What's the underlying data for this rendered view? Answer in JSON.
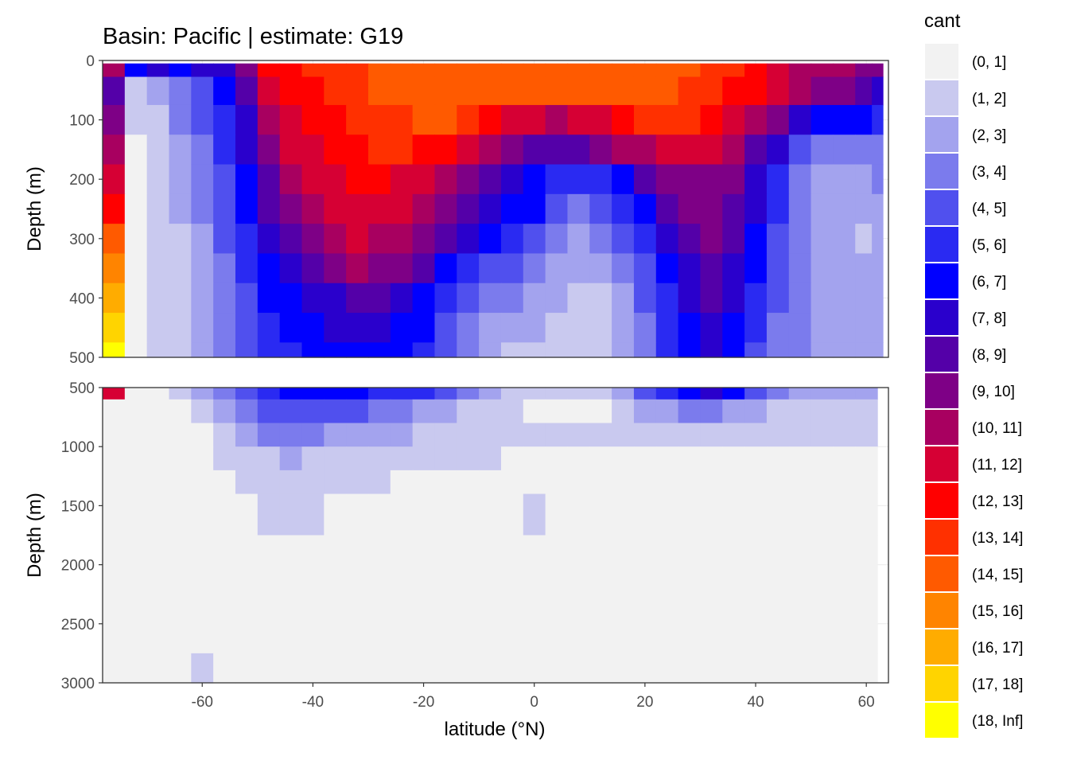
{
  "chart_data": {
    "type": "heatmap",
    "title": "Basin: Pacific | estimate: G19",
    "xlabel": "latitude (°N)",
    "x_ticks": [
      -60,
      -40,
      -20,
      0,
      20,
      40,
      60
    ],
    "xlim": [
      -78,
      64
    ],
    "panels": [
      {
        "ylabel": "Depth (m)",
        "ylim": [
          0,
          500
        ],
        "y_ticks": [
          0,
          100,
          200,
          300,
          400,
          500
        ],
        "reversed": true
      },
      {
        "ylabel": "Depth (m)",
        "ylim": [
          500,
          3000
        ],
        "y_ticks": [
          500,
          1000,
          1500,
          2000,
          2500,
          3000
        ],
        "reversed": true
      }
    ],
    "legend": {
      "title": "cant",
      "position": "right",
      "bins": [
        {
          "label": "(0, 1]",
          "color": "#f2f2f2"
        },
        {
          "label": "(1, 2]",
          "color": "#c9c9ef"
        },
        {
          "label": "(2, 3]",
          "color": "#a3a3ee"
        },
        {
          "label": "(3, 4]",
          "color": "#7b7bed"
        },
        {
          "label": "(4, 5]",
          "color": "#5050ee"
        },
        {
          "label": "(5, 6]",
          "color": "#2a2af2"
        },
        {
          "label": "(6, 7]",
          "color": "#0000ff"
        },
        {
          "label": "(7, 8]",
          "color": "#2a00cc"
        },
        {
          "label": "(8, 9]",
          "color": "#5400a8"
        },
        {
          "label": "(9, 10]",
          "color": "#7e0086"
        },
        {
          "label": "(10, 11]",
          "color": "#a80060"
        },
        {
          "label": "(11, 12]",
          "color": "#d60034"
        },
        {
          "label": "(12, 13]",
          "color": "#ff0000"
        },
        {
          "label": "(13, 14]",
          "color": "#ff3000"
        },
        {
          "label": "(14, 15]",
          "color": "#ff5a00"
        },
        {
          "label": "(15, 16]",
          "color": "#ff8400"
        },
        {
          "label": "(16, 17]",
          "color": "#ffac00"
        },
        {
          "label": "(17, 18]",
          "color": "#ffd400"
        },
        {
          "label": "(18, Inf]",
          "color": "#ffff00"
        }
      ]
    },
    "upper_field": {
      "lat": [
        -76,
        -72,
        -68,
        -64,
        -60,
        -56,
        -52,
        -48,
        -44,
        -40,
        -36,
        -32,
        -28,
        -24,
        -20,
        -16,
        -12,
        -8,
        -4,
        0,
        4,
        8,
        12,
        16,
        20,
        24,
        28,
        32,
        36,
        40,
        44,
        48,
        52,
        56,
        60,
        62
      ],
      "depth": [
        5,
        50,
        100,
        150,
        200,
        250,
        300,
        350,
        400,
        450,
        500
      ],
      "cant": [
        [
          11.0,
          7.0,
          7.5,
          7.0,
          8.0,
          8.0,
          10.0,
          12.5,
          13.0,
          13.5,
          14.0,
          14.0,
          14.5,
          14.5,
          15.0,
          15.0,
          15.0,
          15.0,
          15.0,
          15.0,
          15.0,
          15.0,
          15.0,
          15.0,
          15.0,
          15.0,
          14.5,
          14.0,
          13.5,
          12.5,
          11.5,
          11.0,
          11.0,
          10.5,
          10.0,
          9.5
        ],
        [
          9.0,
          2.0,
          3.0,
          4.0,
          5.0,
          7.0,
          9.0,
          12.0,
          12.5,
          13.0,
          13.5,
          14.0,
          14.5,
          14.5,
          15.0,
          15.0,
          15.0,
          15.0,
          15.0,
          15.0,
          15.0,
          15.0,
          15.0,
          15.0,
          15.0,
          14.5,
          14.0,
          13.5,
          13.0,
          12.5,
          11.5,
          10.5,
          10.0,
          9.5,
          9.0,
          8.0
        ],
        [
          10.0,
          1.5,
          2.0,
          3.5,
          4.5,
          6.0,
          8.0,
          11.0,
          12.0,
          12.5,
          13.0,
          13.5,
          14.0,
          14.0,
          14.5,
          14.5,
          14.0,
          13.0,
          12.0,
          11.5,
          11.0,
          11.5,
          12.0,
          12.5,
          13.5,
          14.0,
          13.5,
          13.0,
          12.0,
          11.0,
          9.5,
          8.0,
          7.0,
          6.5,
          6.5,
          6.0
        ],
        [
          11.0,
          1.0,
          1.5,
          3.0,
          4.0,
          5.5,
          7.5,
          10.0,
          11.5,
          12.0,
          12.5,
          13.0,
          13.5,
          13.5,
          13.0,
          12.5,
          11.5,
          10.5,
          9.5,
          9.0,
          8.5,
          9.0,
          9.5,
          10.5,
          11.0,
          11.5,
          12.0,
          11.5,
          10.5,
          9.0,
          7.5,
          5.0,
          4.0,
          3.5,
          4.0,
          4.0
        ],
        [
          12.0,
          1.0,
          1.5,
          2.5,
          3.5,
          5.0,
          7.0,
          9.0,
          10.5,
          11.5,
          12.0,
          12.5,
          12.5,
          12.0,
          11.5,
          10.5,
          9.5,
          8.5,
          7.5,
          7.0,
          6.0,
          5.5,
          6.0,
          7.0,
          8.5,
          9.5,
          10.0,
          10.0,
          9.5,
          8.0,
          6.0,
          4.0,
          3.0,
          2.5,
          3.0,
          3.5
        ],
        [
          13.0,
          1.0,
          1.5,
          2.5,
          3.5,
          4.5,
          6.5,
          8.5,
          10.0,
          11.0,
          11.5,
          12.0,
          12.0,
          11.5,
          10.5,
          9.5,
          8.5,
          7.5,
          7.0,
          6.5,
          5.0,
          4.0,
          4.5,
          5.5,
          7.0,
          8.5,
          9.5,
          9.5,
          9.0,
          7.5,
          5.5,
          3.8,
          3.0,
          2.5,
          2.5,
          3.0
        ],
        [
          14.5,
          1.0,
          1.5,
          2.0,
          3.0,
          4.5,
          6.0,
          7.5,
          9.0,
          10.0,
          11.0,
          11.5,
          11.0,
          10.5,
          9.5,
          8.5,
          7.5,
          6.5,
          5.5,
          5.0,
          4.0,
          3.0,
          3.5,
          4.5,
          6.0,
          7.5,
          9.0,
          9.5,
          8.5,
          7.0,
          5.0,
          3.5,
          3.0,
          2.5,
          2.0,
          3.0
        ],
        [
          15.5,
          1.0,
          1.5,
          2.0,
          3.0,
          4.0,
          5.5,
          7.0,
          8.0,
          9.0,
          10.0,
          10.5,
          10.0,
          9.5,
          8.5,
          7.0,
          6.0,
          5.0,
          4.5,
          4.0,
          3.0,
          2.5,
          3.0,
          4.0,
          5.0,
          6.5,
          8.0,
          9.0,
          8.0,
          6.5,
          4.5,
          3.5,
          3.0,
          2.5,
          2.5,
          3.0
        ],
        [
          17.0,
          1.0,
          1.5,
          2.0,
          3.0,
          4.0,
          5.0,
          6.5,
          7.0,
          7.5,
          8.0,
          8.5,
          8.5,
          8.0,
          7.0,
          6.0,
          5.0,
          4.0,
          3.5,
          3.0,
          2.5,
          1.5,
          2.0,
          3.0,
          4.5,
          6.0,
          7.5,
          8.5,
          7.5,
          6.0,
          4.5,
          3.5,
          3.0,
          2.5,
          2.5,
          3.0
        ],
        [
          17.5,
          1.0,
          1.5,
          2.0,
          3.0,
          4.0,
          5.0,
          6.0,
          6.5,
          7.0,
          7.5,
          7.5,
          7.5,
          7.0,
          6.5,
          5.0,
          4.0,
          3.0,
          2.5,
          2.5,
          2.0,
          1.5,
          1.5,
          2.5,
          4.0,
          5.5,
          7.0,
          8.0,
          7.0,
          5.5,
          4.0,
          3.5,
          3.0,
          2.5,
          2.5,
          3.0
        ],
        [
          18.5,
          1.0,
          1.5,
          2.0,
          3.0,
          4.0,
          5.0,
          5.5,
          6.0,
          6.5,
          7.0,
          7.0,
          7.0,
          6.5,
          6.0,
          4.5,
          3.5,
          2.5,
          2.0,
          2.0,
          2.0,
          1.5,
          1.5,
          2.5,
          4.0,
          5.5,
          6.5,
          7.5,
          6.5,
          5.0,
          4.0,
          3.5,
          3.0,
          2.5,
          2.5,
          3.0
        ]
      ]
    },
    "lower_field": {
      "lat": [
        -76,
        -72,
        -68,
        -64,
        -60,
        -56,
        -52,
        -48,
        -44,
        -40,
        -36,
        -32,
        -28,
        -24,
        -20,
        -16,
        -12,
        -8,
        -4,
        0,
        4,
        8,
        12,
        16,
        20,
        24,
        28,
        32,
        36,
        40,
        44,
        48,
        52,
        56,
        60
      ],
      "depth": [
        500,
        700,
        900,
        1100,
        1300,
        1500,
        2000,
        2500,
        3000
      ],
      "cant": [
        [
          12.0,
          1.0,
          1.0,
          2.0,
          3.0,
          4.0,
          5.0,
          6.0,
          6.5,
          6.5,
          6.5,
          6.5,
          6.0,
          6.0,
          5.5,
          4.5,
          3.5,
          2.5,
          2.0,
          2.0,
          2.0,
          1.5,
          2.0,
          3.0,
          4.5,
          6.0,
          7.0,
          7.5,
          6.5,
          5.0,
          4.0,
          3.0,
          2.5,
          2.5,
          2.5
        ],
        [
          1.0,
          0.5,
          0.5,
          0.8,
          1.5,
          2.5,
          3.5,
          4.5,
          4.5,
          5.0,
          5.0,
          4.5,
          4.0,
          3.5,
          3.0,
          2.5,
          1.8,
          1.5,
          1.2,
          0.9,
          0.9,
          0.8,
          0.9,
          1.5,
          2.5,
          3.0,
          3.5,
          3.5,
          3.0,
          2.5,
          2.0,
          2.0,
          1.8,
          1.8,
          1.8
        ],
        [
          0.5,
          0.5,
          0.5,
          0.6,
          1.0,
          1.8,
          2.5,
          3.2,
          3.5,
          3.5,
          3.0,
          2.8,
          2.5,
          2.2,
          2.0,
          1.8,
          1.5,
          1.3,
          1.2,
          1.2,
          1.2,
          1.2,
          1.2,
          1.3,
          1.5,
          1.5,
          1.5,
          1.4,
          1.3,
          1.3,
          1.3,
          1.3,
          1.3,
          1.2,
          1.2
        ],
        [
          0.5,
          0.5,
          0.5,
          0.5,
          0.8,
          1.3,
          1.8,
          2.0,
          2.2,
          2.0,
          1.8,
          1.6,
          1.5,
          1.4,
          1.3,
          1.2,
          1.1,
          1.05,
          1.0,
          0.9,
          0.9,
          0.9,
          0.9,
          0.9,
          0.9,
          0.9,
          0.9,
          0.9,
          0.9,
          0.9,
          0.9,
          0.9,
          0.9,
          0.9,
          0.9
        ],
        [
          0.5,
          0.5,
          0.5,
          0.5,
          0.6,
          0.9,
          1.3,
          1.5,
          1.6,
          1.5,
          1.3,
          1.2,
          1.1,
          0.9,
          0.9,
          0.8,
          0.8,
          0.8,
          0.8,
          0.8,
          0.8,
          0.8,
          0.8,
          0.8,
          0.8,
          0.8,
          0.8,
          0.8,
          0.8,
          0.8,
          0.8,
          0.8,
          0.8,
          0.8,
          0.8
        ],
        [
          0.5,
          0.5,
          0.5,
          0.5,
          0.5,
          0.6,
          0.8,
          1.1,
          1.2,
          1.1,
          0.9,
          0.8,
          0.8,
          0.8,
          0.8,
          0.8,
          0.8,
          0.8,
          0.8,
          1.5,
          0.8,
          0.8,
          0.8,
          0.8,
          0.8,
          0.8,
          0.8,
          0.8,
          0.8,
          0.8,
          0.8,
          0.8,
          0.8,
          0.8,
          0.8
        ],
        [
          0.5,
          0.5,
          0.5,
          0.5,
          0.5,
          0.5,
          0.5,
          0.5,
          0.5,
          0.5,
          0.5,
          0.5,
          0.5,
          0.5,
          0.5,
          0.5,
          0.5,
          0.5,
          0.5,
          0.5,
          0.5,
          0.5,
          0.5,
          0.5,
          0.5,
          0.5,
          0.5,
          0.5,
          0.5,
          0.5,
          0.5,
          0.5,
          0.5,
          0.5,
          0.5
        ],
        [
          0.5,
          0.5,
          0.5,
          0.5,
          0.5,
          0.5,
          0.5,
          0.5,
          0.5,
          0.5,
          0.5,
          0.5,
          0.5,
          0.5,
          0.5,
          0.5,
          0.5,
          0.5,
          0.5,
          0.5,
          0.5,
          0.5,
          0.5,
          0.5,
          0.5,
          0.5,
          0.5,
          0.5,
          0.5,
          0.5,
          0.5,
          0.5,
          0.5,
          0.5,
          0.5
        ],
        [
          0.5,
          0.5,
          0.5,
          0.5,
          1.2,
          0.5,
          0.5,
          0.5,
          0.5,
          0.5,
          0.5,
          0.5,
          0.5,
          0.5,
          0.5,
          0.5,
          0.5,
          0.5,
          0.5,
          0.5,
          0.5,
          0.5,
          0.5,
          0.5,
          0.5,
          0.5,
          0.5,
          0.5,
          0.5,
          0.5,
          0.5,
          0.5,
          0.5,
          0.5,
          0.5
        ]
      ]
    }
  }
}
